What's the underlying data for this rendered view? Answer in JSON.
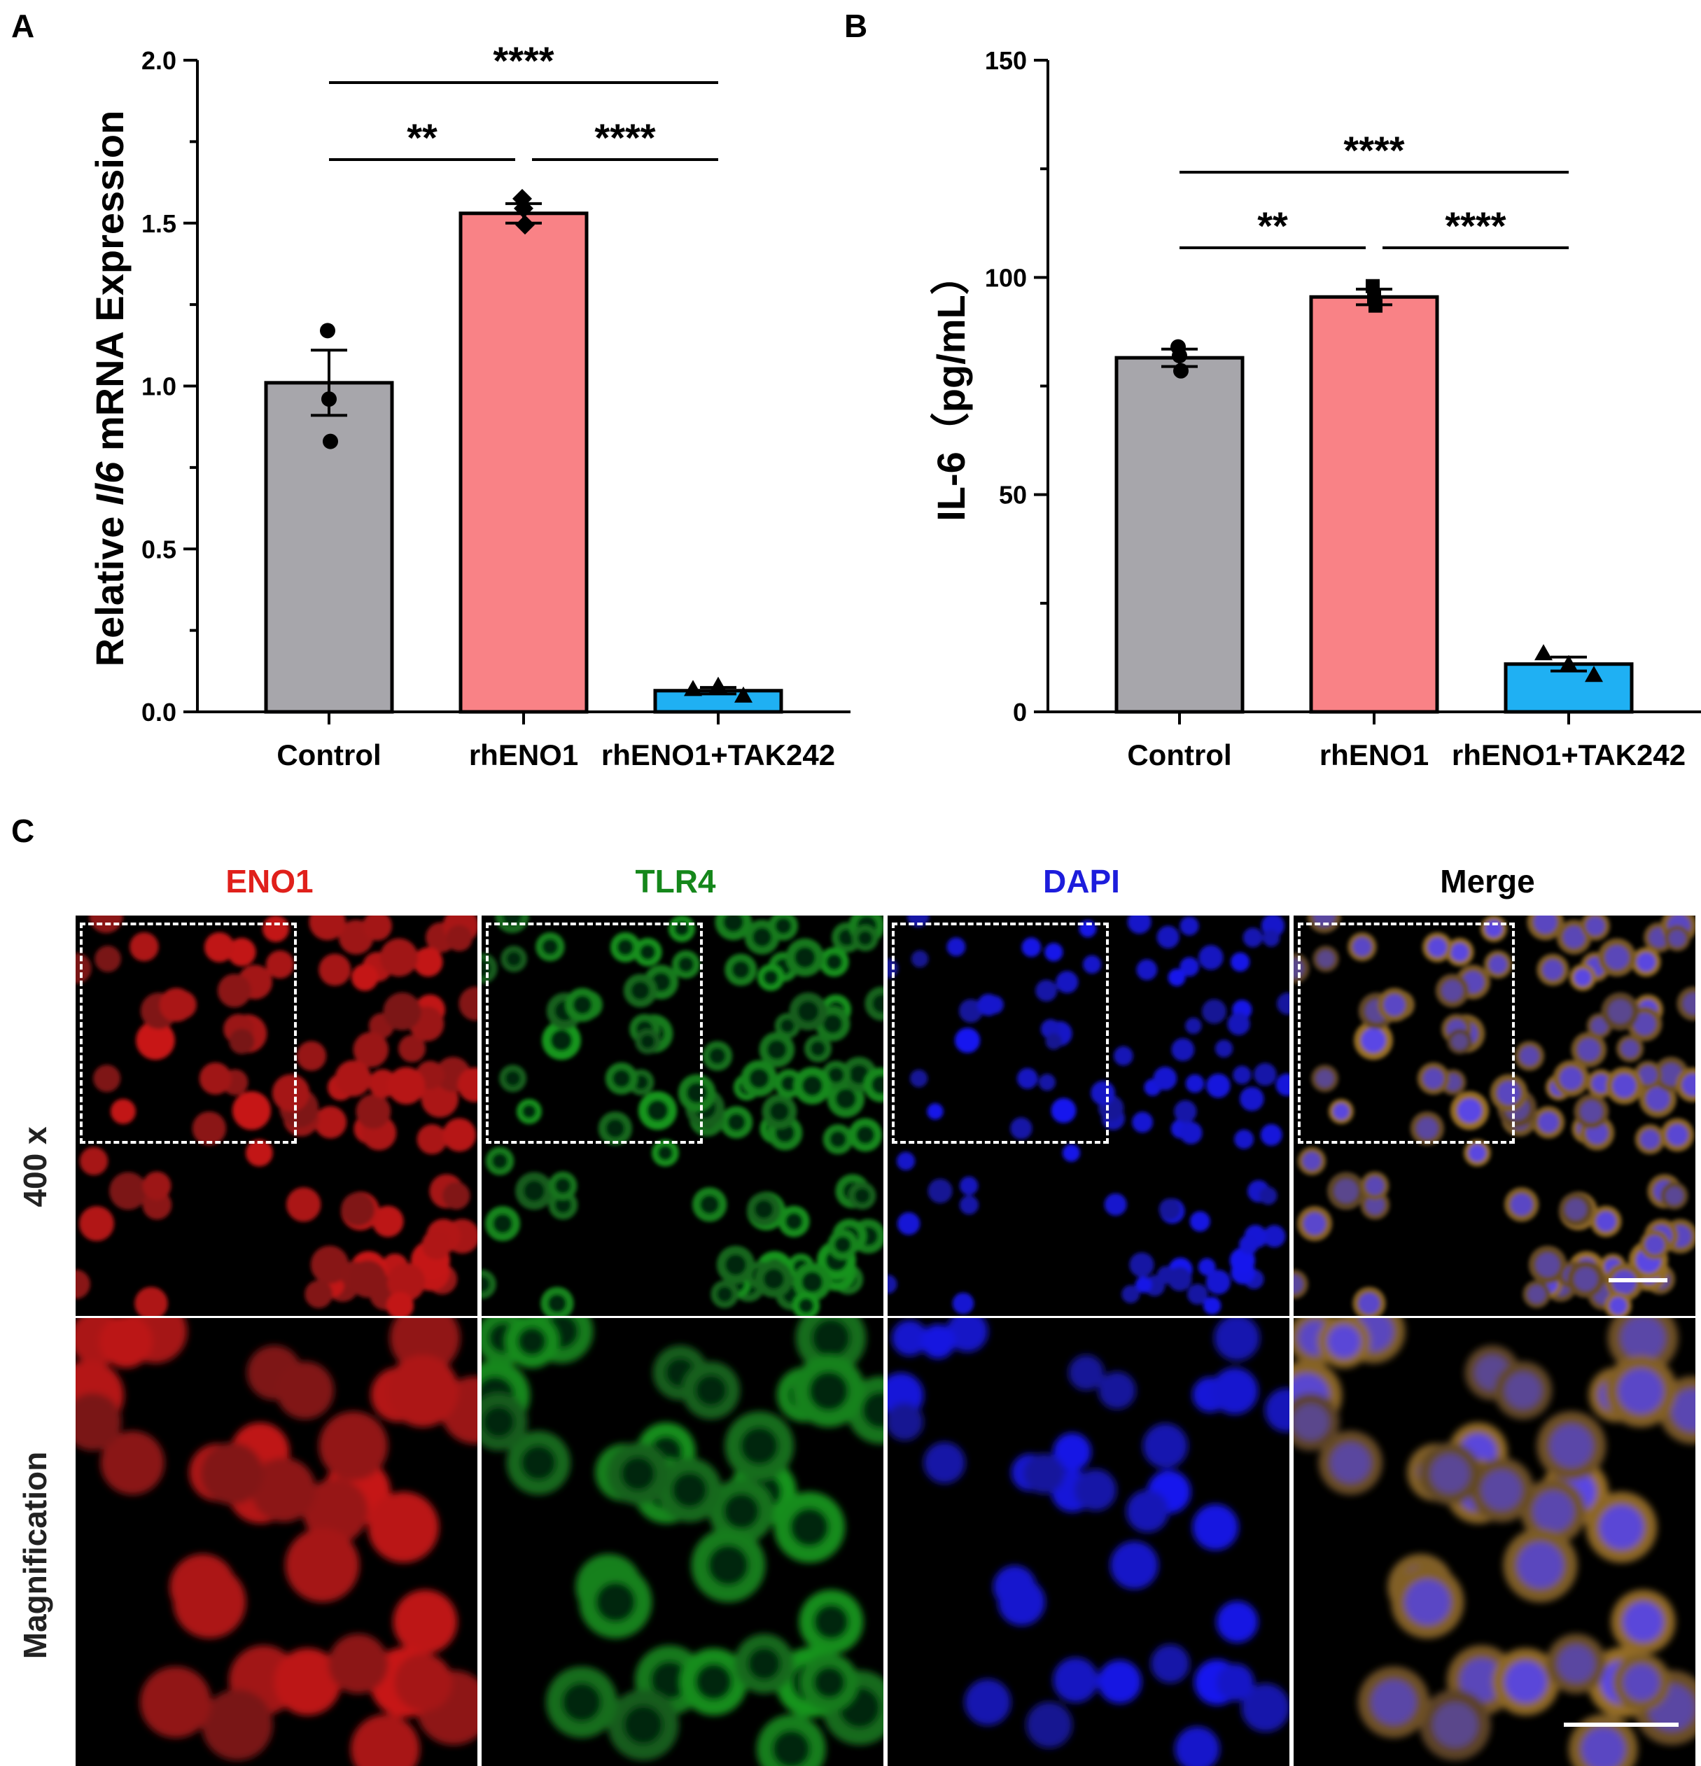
{
  "panels": {
    "a_letter": "A",
    "b_letter": "B",
    "c_letter": "C"
  },
  "chart_data": [
    {
      "type": "bar",
      "panel": "A",
      "categories": [
        "Control",
        "rhENO1",
        "rhENO1+TAK242"
      ],
      "values": [
        1.01,
        1.53,
        0.065
      ],
      "errors": [
        0.1,
        0.03,
        0.01
      ],
      "points": [
        [
          1.17,
          0.96,
          0.83
        ],
        [
          1.575,
          1.545,
          1.495
        ],
        [
          0.07,
          0.08,
          0.05
        ]
      ],
      "markers": [
        "circle",
        "diamond",
        "triangle"
      ],
      "colors": [
        "#a7a6ab",
        "#f98286",
        "#1fb0f3"
      ],
      "ylabel_prefix": "Relative ",
      "ylabel_italic": "Il6",
      "ylabel_suffix": " mRNA Expression",
      "ylim": [
        0,
        2.0
      ],
      "yticks": [
        0.0,
        0.5,
        1.0,
        1.5,
        2.0
      ],
      "ytick_labels": [
        "0.0",
        "0.5",
        "1.0",
        "1.5",
        "2.0"
      ],
      "significance": [
        {
          "from": 0,
          "to": 1,
          "label": "**",
          "level": 1
        },
        {
          "from": 1,
          "to": 2,
          "label": "****",
          "level": 1
        },
        {
          "from": 0,
          "to": 2,
          "label": "****",
          "level": 2
        }
      ]
    },
    {
      "type": "bar",
      "panel": "B",
      "categories": [
        "Control",
        "rhENO1",
        "rhENO1+TAK242"
      ],
      "values": [
        81.5,
        95.5,
        11
      ],
      "errors": [
        2,
        1.8,
        1.6
      ],
      "points": [
        [
          84,
          82,
          78.5
        ],
        [
          98,
          95.5,
          93.5
        ],
        [
          13.5,
          11,
          8.5
        ]
      ],
      "markers": [
        "circle",
        "square",
        "triangle"
      ],
      "colors": [
        "#a7a6ab",
        "#f98286",
        "#1fb0f3"
      ],
      "ylabel": "IL-6（pg/mL）",
      "ylim": [
        0,
        150
      ],
      "yticks": [
        0,
        50,
        100,
        150
      ],
      "ytick_labels": [
        "0",
        "50",
        "100",
        "150"
      ],
      "significance": [
        {
          "from": 0,
          "to": 1,
          "label": "**",
          "level": 1
        },
        {
          "from": 1,
          "to": 2,
          "label": "****",
          "level": 1
        },
        {
          "from": 0,
          "to": 2,
          "label": "****",
          "level": 2
        }
      ]
    }
  ],
  "panel_c": {
    "columns": [
      {
        "label": "ENO1",
        "color": "#e0201b"
      },
      {
        "label": "TLR4",
        "color": "#15871b"
      },
      {
        "label": "DAPI",
        "color": "#1d1ddc"
      },
      {
        "label": "Merge",
        "color": "#000000"
      }
    ],
    "rows": [
      {
        "label": "400 x"
      },
      {
        "label": "Magnification"
      }
    ]
  }
}
